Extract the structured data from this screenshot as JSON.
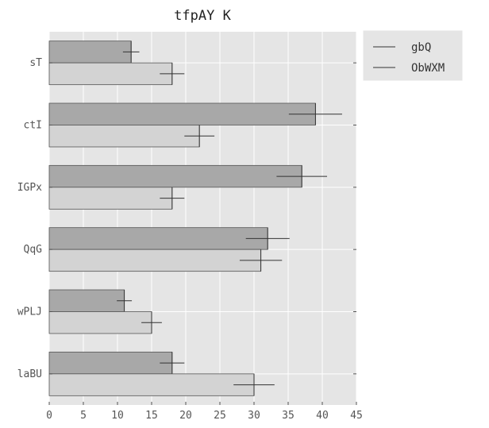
{
  "chart_data": {
    "type": "bar",
    "orientation": "horizontal",
    "title": "tfpAY K",
    "xlabel": "",
    "ylabel": "",
    "categories": [
      "sT",
      "ctI",
      "IGPx",
      "QqG",
      "wPLJ",
      "laBU"
    ],
    "series": [
      {
        "name": "gbQ",
        "values": [
          12,
          39,
          37,
          32,
          11,
          18
        ],
        "errors": [
          1.2,
          3.9,
          3.7,
          3.2,
          1.1,
          1.8
        ],
        "color": "#a8a8a8"
      },
      {
        "name": "ObWXM",
        "values": [
          18,
          22,
          18,
          31,
          15,
          30
        ],
        "errors": [
          1.8,
          2.2,
          1.8,
          3.1,
          1.5,
          3.0
        ],
        "color": "#d3d3d3"
      }
    ],
    "xlim": [
      0,
      45
    ],
    "xticks": [
      0,
      5,
      10,
      15,
      20,
      25,
      30,
      35,
      40,
      45
    ],
    "grid": true,
    "legend_position": "upper-right-outside"
  },
  "colors": {
    "plot_background": "#e5e5e5",
    "grid": "#ffffff",
    "edge": "#555555"
  }
}
